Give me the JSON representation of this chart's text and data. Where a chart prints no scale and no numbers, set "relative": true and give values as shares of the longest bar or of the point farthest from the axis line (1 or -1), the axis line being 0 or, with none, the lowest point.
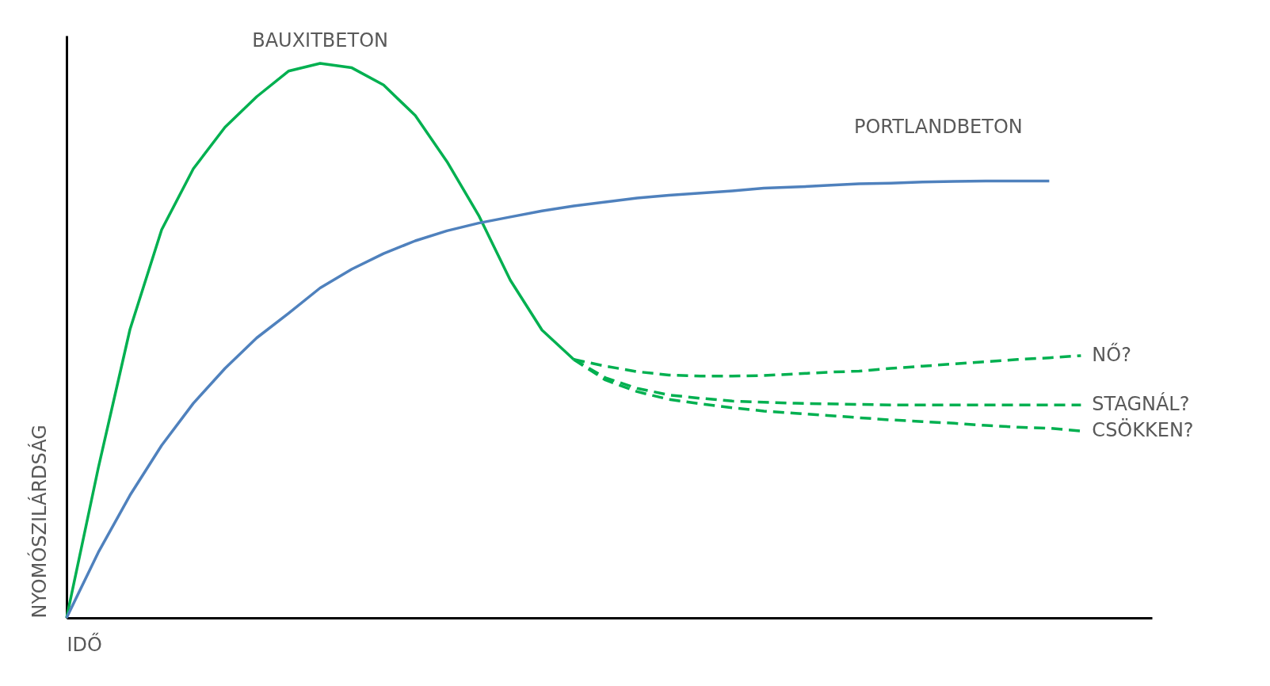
{
  "chart_data": {
    "type": "line",
    "relative": true,
    "xlabel": "IDŐ",
    "ylabel": "NYOMÓSZILÁRDSÁG",
    "grid": false,
    "tick_labels": false,
    "marker": "none",
    "categories": [
      null,
      null,
      null,
      null,
      null,
      null,
      null,
      null,
      null,
      null,
      null,
      null,
      null,
      null,
      null,
      null,
      null,
      null,
      null,
      null,
      null,
      null,
      null,
      null,
      null,
      null,
      null,
      null,
      null,
      null,
      null,
      null,
      null
    ],
    "series": [
      {
        "name": "BAUXITBETON",
        "color": "#00b050",
        "line_style": "solid",
        "values": [
          0,
          0.27,
          0.52,
          0.7,
          0.81,
          0.885,
          0.94,
          0.986,
          1.0,
          0.992,
          0.961,
          0.906,
          0.823,
          0.726,
          0.609,
          0.519,
          0.466,
          null,
          null,
          null,
          null,
          null,
          null,
          null,
          null,
          null,
          null,
          null,
          null,
          null,
          null,
          null,
          null
        ]
      },
      {
        "name": "PORTLANDBETON",
        "color": "#4f81bd",
        "line_style": "solid",
        "values": [
          0,
          0.118,
          0.221,
          0.311,
          0.387,
          0.45,
          0.505,
          0.549,
          0.595,
          0.629,
          0.657,
          0.68,
          0.698,
          0.712,
          0.723,
          0.734,
          0.743,
          0.75,
          0.757,
          0.762,
          0.766,
          0.77,
          0.775,
          0.777,
          0.78,
          0.783,
          0.784,
          0.786,
          0.787,
          0.788,
          0.788,
          0.788,
          null
        ]
      },
      {
        "name": "NŐ?",
        "color": "#00b050",
        "line_style": "dashed",
        "values": [
          null,
          null,
          null,
          null,
          null,
          null,
          null,
          null,
          null,
          null,
          null,
          null,
          null,
          null,
          null,
          null,
          0.466,
          0.454,
          0.444,
          0.438,
          0.436,
          0.436,
          0.437,
          0.44,
          0.443,
          0.445,
          0.45,
          0.454,
          0.458,
          0.462,
          0.466,
          0.469,
          0.473
        ]
      },
      {
        "name": "STAGNÁL?",
        "color": "#00b050",
        "line_style": "dashed",
        "values": [
          null,
          null,
          null,
          null,
          null,
          null,
          null,
          null,
          null,
          null,
          null,
          null,
          null,
          null,
          null,
          null,
          0.466,
          0.433,
          0.414,
          0.402,
          0.396,
          0.391,
          0.389,
          0.387,
          0.386,
          0.385,
          0.384,
          0.384,
          0.384,
          0.384,
          0.384,
          0.384,
          0.384
        ]
      },
      {
        "name": "CSÖKKEN?",
        "color": "#00b050",
        "line_style": "dashed",
        "values": [
          null,
          null,
          null,
          null,
          null,
          null,
          null,
          null,
          null,
          null,
          null,
          null,
          null,
          null,
          null,
          null,
          0.466,
          0.429,
          0.408,
          0.394,
          0.386,
          0.379,
          0.373,
          0.369,
          0.365,
          0.361,
          0.357,
          0.354,
          0.351,
          0.347,
          0.344,
          0.342,
          0.337
        ]
      }
    ]
  }
}
